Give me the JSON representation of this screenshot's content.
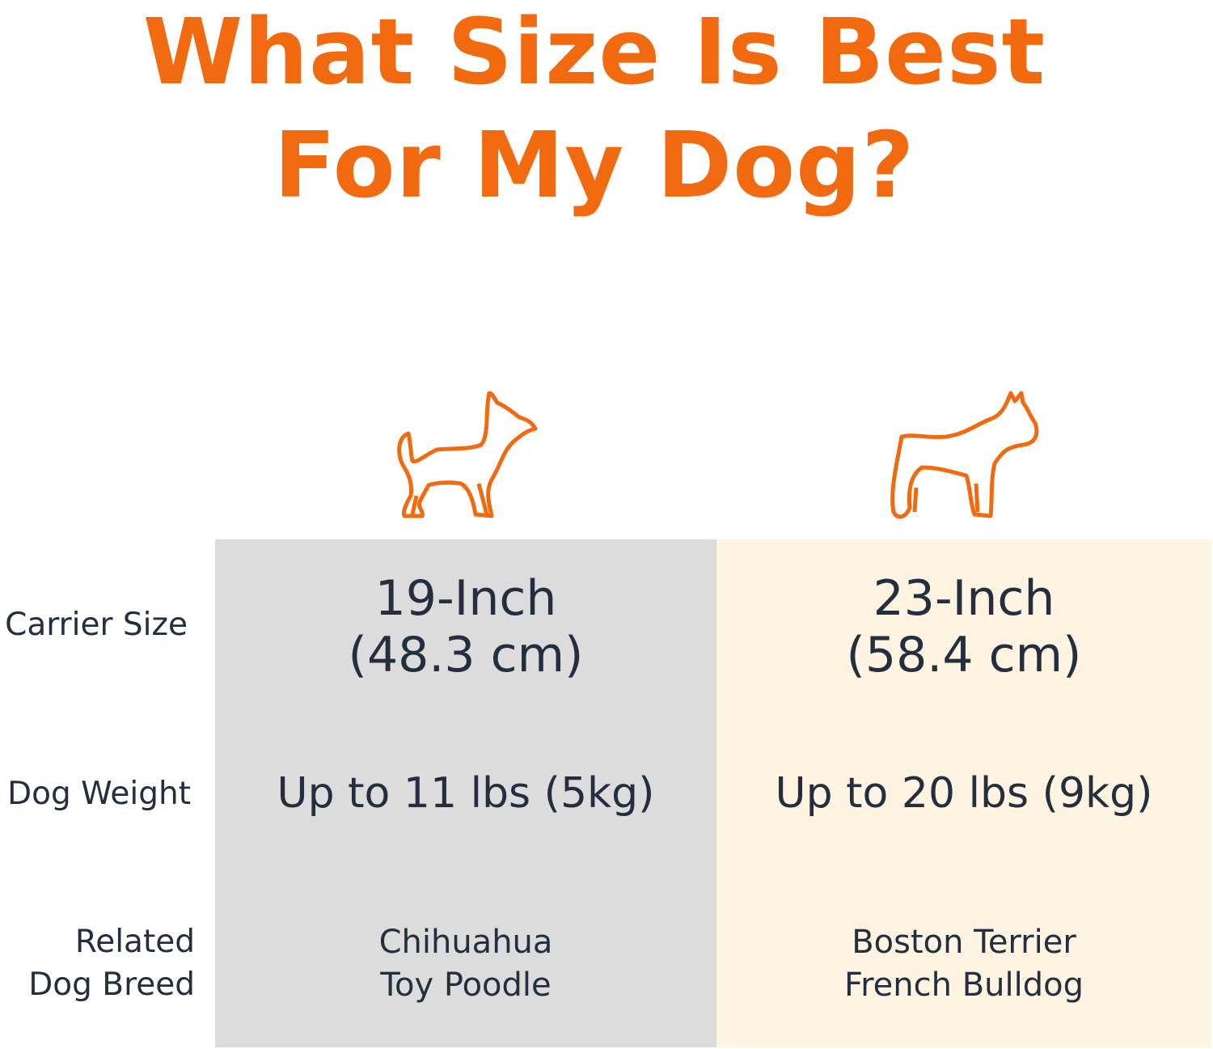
{
  "title": {
    "line1": "What Size Is Best",
    "line2": "For My Dog?",
    "color": "#f26a10"
  },
  "row_labels": {
    "carrier_size": "Carrier Size",
    "dog_weight": "Dog Weight",
    "breed_line1": "Related",
    "breed_line2": "Dog Breed"
  },
  "columns": [
    {
      "icon": "small-dog-icon",
      "size_line1": "19-Inch",
      "size_line2": "(48.3 cm)",
      "weight": "Up to 11 lbs (5kg)",
      "breed1": "Chihuahua",
      "breed2": "Toy Poodle",
      "background": "#dcdcdc"
    },
    {
      "icon": "medium-dog-icon",
      "size_line1": "23-Inch",
      "size_line2": "(58.4 cm)",
      "weight": "Up to 20 lbs (9kg)",
      "breed1": "Boston Terrier",
      "breed2": "French Bulldog",
      "background": "#fff3e2"
    }
  ]
}
